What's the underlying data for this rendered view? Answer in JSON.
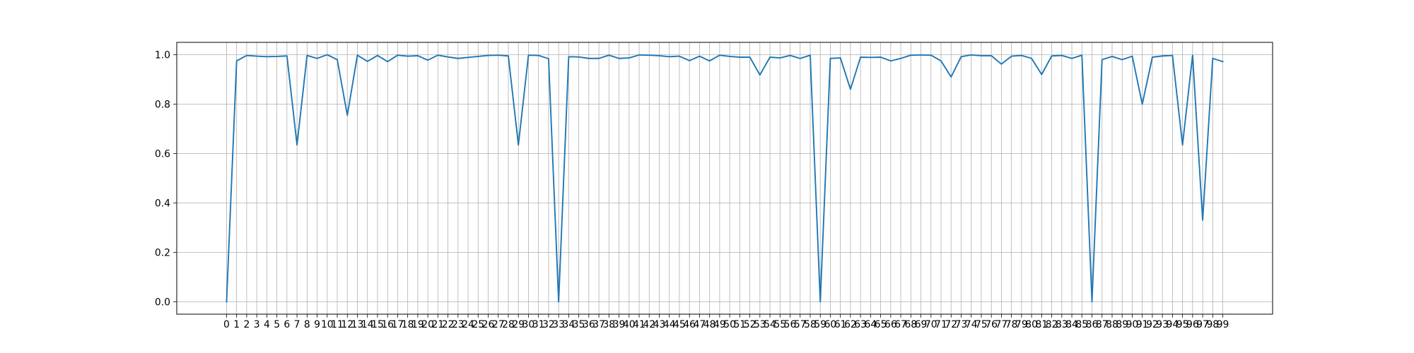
{
  "chart_data": {
    "type": "line",
    "title": "",
    "xlabel": "",
    "ylabel": "",
    "x": [
      0,
      1,
      2,
      3,
      4,
      5,
      6,
      7,
      8,
      9,
      10,
      11,
      12,
      13,
      14,
      15,
      16,
      17,
      18,
      19,
      20,
      21,
      22,
      23,
      24,
      25,
      26,
      27,
      28,
      29,
      30,
      31,
      32,
      33,
      34,
      35,
      36,
      37,
      38,
      39,
      40,
      41,
      42,
      43,
      44,
      45,
      46,
      47,
      48,
      49,
      50,
      51,
      52,
      53,
      54,
      55,
      56,
      57,
      58,
      59,
      60,
      61,
      62,
      63,
      64,
      65,
      66,
      67,
      68,
      69,
      70,
      71,
      72,
      73,
      74,
      75,
      76,
      77,
      78,
      79,
      80,
      81,
      82,
      83,
      84,
      85,
      86,
      87,
      88,
      89,
      90,
      91,
      92,
      93,
      94,
      95,
      96,
      97,
      98,
      99
    ],
    "series": [
      {
        "values": [
          0.0,
          0.975,
          0.997,
          0.994,
          0.992,
          0.993,
          0.995,
          0.635,
          0.997,
          0.985,
          1.0,
          0.98,
          0.755,
          0.998,
          0.973,
          0.997,
          0.972,
          0.998,
          0.994,
          0.996,
          0.978,
          0.998,
          0.991,
          0.985,
          0.989,
          0.993,
          0.997,
          0.998,
          0.995,
          0.635,
          0.998,
          0.997,
          0.984,
          0.0,
          0.992,
          0.991,
          0.985,
          0.985,
          0.998,
          0.985,
          0.987,
          0.999,
          0.998,
          0.996,
          0.992,
          0.994,
          0.976,
          0.994,
          0.975,
          0.998,
          0.993,
          0.99,
          0.99,
          0.918,
          0.99,
          0.987,
          0.997,
          0.985,
          0.998,
          0.0,
          0.985,
          0.987,
          0.86,
          0.99,
          0.989,
          0.99,
          0.975,
          0.985,
          0.998,
          0.999,
          0.998,
          0.975,
          0.91,
          0.992,
          0.999,
          0.996,
          0.996,
          0.962,
          0.994,
          0.997,
          0.985,
          0.92,
          0.995,
          0.997,
          0.985,
          0.998,
          0.0,
          0.98,
          0.993,
          0.98,
          0.994,
          0.8,
          0.99,
          0.995,
          0.997,
          0.635,
          0.998,
          0.33,
          0.985,
          0.972
        ],
        "color": "#1f77b4"
      }
    ],
    "xticks": [
      "0",
      "1",
      "2",
      "3",
      "4",
      "5",
      "6",
      "7",
      "8",
      "9",
      "10",
      "11",
      "12",
      "13",
      "14",
      "15",
      "16",
      "17",
      "18",
      "19",
      "20",
      "21",
      "22",
      "23",
      "24",
      "25",
      "26",
      "27",
      "28",
      "29",
      "30",
      "31",
      "32",
      "33",
      "34",
      "35",
      "36",
      "37",
      "38",
      "39",
      "40",
      "41",
      "42",
      "43",
      "44",
      "45",
      "46",
      "47",
      "48",
      "49",
      "50",
      "51",
      "52",
      "53",
      "54",
      "55",
      "56",
      "57",
      "58",
      "59",
      "60",
      "61",
      "62",
      "63",
      "64",
      "65",
      "66",
      "67",
      "68",
      "69",
      "70",
      "71",
      "72",
      "73",
      "74",
      "75",
      "76",
      "77",
      "78",
      "79",
      "80",
      "81",
      "82",
      "83",
      "84",
      "85",
      "86",
      "87",
      "88",
      "89",
      "90",
      "91",
      "92",
      "93",
      "94",
      "95",
      "96",
      "97",
      "98",
      "99"
    ],
    "yticks": [
      0.0,
      0.2,
      0.4,
      0.6,
      0.8,
      1.0
    ],
    "ytick_labels": [
      "0.0",
      "0.2",
      "0.4",
      "0.6",
      "0.8",
      "1.0"
    ],
    "xlim": [
      -4.95,
      103.95
    ],
    "ylim": [
      -0.05,
      1.05
    ],
    "grid": true
  }
}
